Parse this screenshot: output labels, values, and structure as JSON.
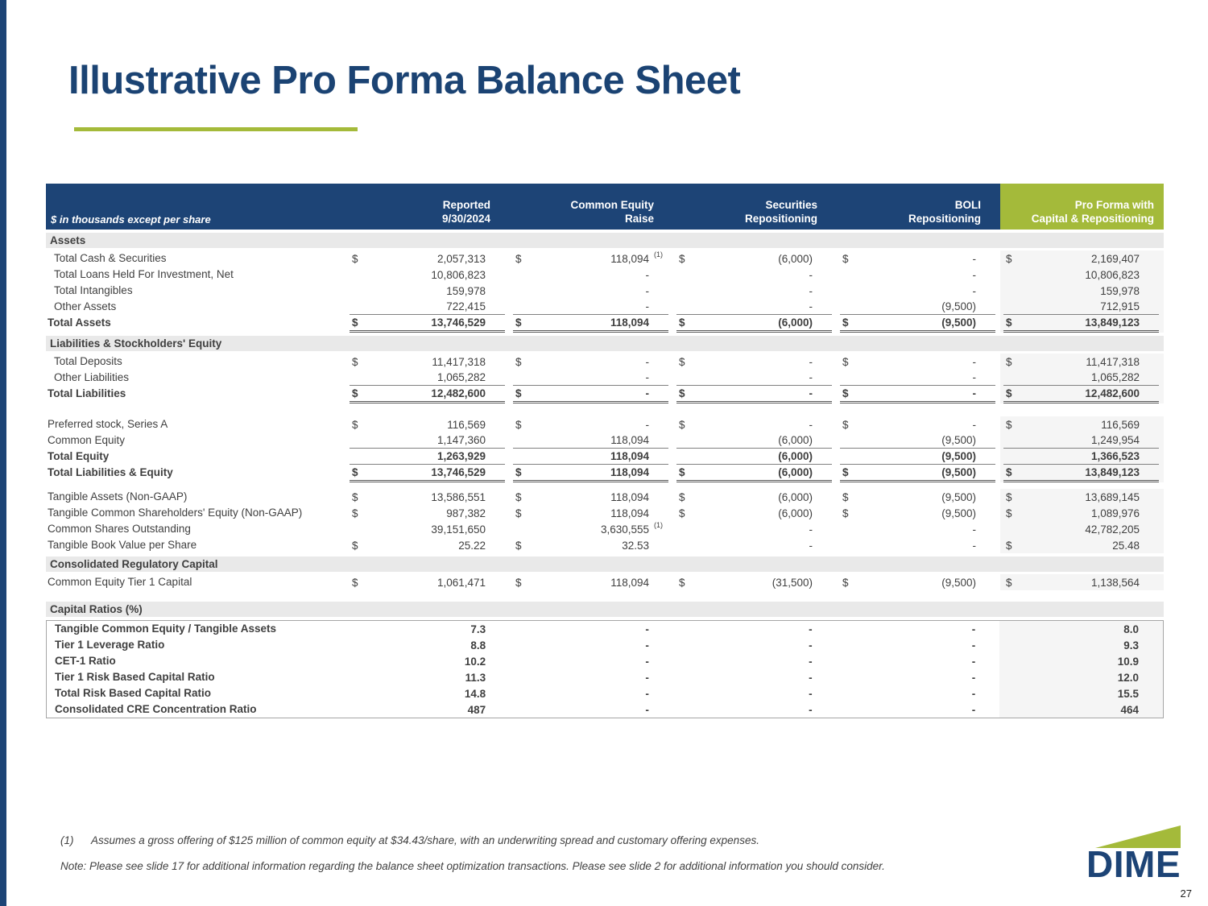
{
  "slide": {
    "title": "Illustrative Pro Forma Balance Sheet",
    "page_number": "27"
  },
  "colors": {
    "navy": "#1D4476",
    "green": "#A4BA3A",
    "section_gray": "#E9E9E9"
  },
  "table": {
    "units_label": "$ in thousands except per share",
    "columns": [
      {
        "l1": "Reported",
        "l2": "9/30/2024"
      },
      {
        "l1": "Common Equity",
        "l2": "Raise"
      },
      {
        "l1": "Securities",
        "l2": "Repositioning"
      },
      {
        "l1": "BOLI",
        "l2": "Repositioning"
      },
      {
        "l1": "Pro Forma with",
        "l2": "Capital & Repositioning"
      }
    ],
    "rows": [
      {
        "t": "section",
        "label": "Assets"
      },
      {
        "t": "data",
        "indent": true,
        "label": "Total Cash & Securities",
        "cells": [
          {
            "d": "$",
            "v": "2,057,313"
          },
          {
            "d": "$",
            "v": "118,094",
            "sup": "(1)"
          },
          {
            "d": "$",
            "v": "(6,000)"
          },
          {
            "d": "$",
            "v": "-"
          },
          {
            "d": "$",
            "v": "2,169,407"
          }
        ]
      },
      {
        "t": "data",
        "indent": true,
        "label": "Total Loans Held For Investment, Net",
        "cells": [
          {
            "v": "10,806,823"
          },
          {
            "v": "-"
          },
          {
            "v": "-"
          },
          {
            "v": "-"
          },
          {
            "v": "10,806,823"
          }
        ]
      },
      {
        "t": "data",
        "indent": true,
        "label": "Total Intangibles",
        "cells": [
          {
            "v": "159,978"
          },
          {
            "v": "-"
          },
          {
            "v": "-"
          },
          {
            "v": "-"
          },
          {
            "v": "159,978"
          }
        ]
      },
      {
        "t": "data",
        "indent": true,
        "label": "Other Assets",
        "u": 1,
        "cells": [
          {
            "v": "722,415"
          },
          {
            "v": "-"
          },
          {
            "v": "-"
          },
          {
            "v": "(9,500)"
          },
          {
            "v": "712,915"
          }
        ]
      },
      {
        "t": "data",
        "bold": true,
        "label": "Total Assets",
        "u": 2,
        "cells": [
          {
            "d": "$",
            "v": "13,746,529"
          },
          {
            "d": "$",
            "v": "118,094"
          },
          {
            "d": "$",
            "v": "(6,000)"
          },
          {
            "d": "$",
            "v": "(9,500)"
          },
          {
            "d": "$",
            "v": "13,849,123"
          }
        ]
      },
      {
        "t": "section",
        "label": "Liabilities & Stockholders' Equity"
      },
      {
        "t": "data",
        "indent": true,
        "label": "Total Deposits",
        "cells": [
          {
            "d": "$",
            "v": "11,417,318"
          },
          {
            "d": "$",
            "v": "-"
          },
          {
            "d": "$",
            "v": "-"
          },
          {
            "d": "$",
            "v": "-"
          },
          {
            "d": "$",
            "v": "11,417,318"
          }
        ]
      },
      {
        "t": "data",
        "indent": true,
        "label": "Other Liabilities",
        "u": 1,
        "cells": [
          {
            "v": "1,065,282"
          },
          {
            "v": "-"
          },
          {
            "v": "-"
          },
          {
            "v": "-"
          },
          {
            "v": "1,065,282"
          }
        ]
      },
      {
        "t": "data",
        "bold": true,
        "label": "Total Liabilities",
        "u": 2,
        "cells": [
          {
            "d": "$",
            "v": "12,482,600"
          },
          {
            "d": "$",
            "v": "-"
          },
          {
            "d": "$",
            "v": "-"
          },
          {
            "d": "$",
            "v": "-"
          },
          {
            "d": "$",
            "v": "12,482,600"
          }
        ]
      },
      {
        "t": "spacer",
        "h": 16
      },
      {
        "t": "data",
        "label": "Preferred stock, Series A",
        "cells": [
          {
            "d": "$",
            "v": "116,569"
          },
          {
            "d": "$",
            "v": "-"
          },
          {
            "d": "$",
            "v": "-"
          },
          {
            "d": "$",
            "v": "-"
          },
          {
            "d": "$",
            "v": "116,569"
          }
        ]
      },
      {
        "t": "data",
        "label": "Common Equity",
        "u": 1,
        "cells": [
          {
            "v": "1,147,360"
          },
          {
            "v": "118,094"
          },
          {
            "v": "(6,000)"
          },
          {
            "v": "(9,500)"
          },
          {
            "v": "1,249,954"
          }
        ]
      },
      {
        "t": "data",
        "bold": true,
        "label": "Total Equity",
        "u": 1,
        "cells": [
          {
            "v": "1,263,929"
          },
          {
            "v": "118,094"
          },
          {
            "v": "(6,000)"
          },
          {
            "v": "(9,500)"
          },
          {
            "v": "1,366,523"
          }
        ]
      },
      {
        "t": "data",
        "bold": true,
        "label": "Total Liabilities & Equity",
        "u": 2,
        "cells": [
          {
            "d": "$",
            "v": "13,746,529"
          },
          {
            "d": "$",
            "v": "118,094"
          },
          {
            "d": "$",
            "v": "(6,000)"
          },
          {
            "d": "$",
            "v": "(9,500)"
          },
          {
            "d": "$",
            "v": "13,849,123"
          }
        ]
      },
      {
        "t": "spacer",
        "h": 8
      },
      {
        "t": "data",
        "label": "Tangible Assets (Non-GAAP)",
        "cells": [
          {
            "d": "$",
            "v": "13,586,551"
          },
          {
            "d": "$",
            "v": "118,094"
          },
          {
            "d": "$",
            "v": "(6,000)"
          },
          {
            "d": "$",
            "v": "(9,500)"
          },
          {
            "d": "$",
            "v": "13,689,145"
          }
        ]
      },
      {
        "t": "data",
        "label": "Tangible Common Shareholders' Equity (Non-GAAP)",
        "cells": [
          {
            "d": "$",
            "v": "987,382"
          },
          {
            "d": "$",
            "v": "118,094"
          },
          {
            "d": "$",
            "v": "(6,000)"
          },
          {
            "d": "$",
            "v": "(9,500)"
          },
          {
            "d": "$",
            "v": "1,089,976"
          }
        ]
      },
      {
        "t": "data",
        "label": "Common Shares Outstanding",
        "cells": [
          {
            "v": "39,151,650"
          },
          {
            "v": "3,630,555",
            "sup": "(1)"
          },
          {
            "v": "-"
          },
          {
            "v": "-"
          },
          {
            "v": "42,782,205"
          }
        ]
      },
      {
        "t": "data",
        "label": "Tangible Book Value per Share",
        "cells": [
          {
            "d": "$",
            "v": "25.22"
          },
          {
            "d": "$",
            "v": "32.53"
          },
          {
            "v": "-"
          },
          {
            "v": "-"
          },
          {
            "d": "$",
            "v": "25.48"
          }
        ]
      },
      {
        "t": "section",
        "label": "Consolidated Regulatory Capital"
      },
      {
        "t": "data",
        "label": "Common Equity Tier 1 Capital",
        "cells": [
          {
            "d": "$",
            "v": "1,061,471"
          },
          {
            "d": "$",
            "v": "118,094"
          },
          {
            "d": "$",
            "v": "(31,500)"
          },
          {
            "d": "$",
            "v": "(9,500)"
          },
          {
            "d": "$",
            "v": "1,138,564"
          }
        ]
      },
      {
        "t": "spacer",
        "h": 10
      },
      {
        "t": "section",
        "label": "Capital Ratios (%)"
      },
      {
        "t": "ratio",
        "indent": true,
        "label": "Tangible Common Equity / Tangible Assets",
        "cells": [
          {
            "v": "7.3"
          },
          {
            "v": "-"
          },
          {
            "v": "-"
          },
          {
            "v": "-"
          },
          {
            "v": "8.0"
          }
        ]
      },
      {
        "t": "ratio",
        "indent": true,
        "label": "Tier 1 Leverage Ratio",
        "cells": [
          {
            "v": "8.8"
          },
          {
            "v": "-"
          },
          {
            "v": "-"
          },
          {
            "v": "-"
          },
          {
            "v": "9.3"
          }
        ]
      },
      {
        "t": "ratio",
        "indent": true,
        "label": "CET-1 Ratio",
        "cells": [
          {
            "v": "10.2"
          },
          {
            "v": "-"
          },
          {
            "v": "-"
          },
          {
            "v": "-"
          },
          {
            "v": "10.9"
          }
        ]
      },
      {
        "t": "ratio",
        "indent": true,
        "label": "Tier 1 Risk Based Capital Ratio",
        "cells": [
          {
            "v": "11.3"
          },
          {
            "v": "-"
          },
          {
            "v": "-"
          },
          {
            "v": "-"
          },
          {
            "v": "12.0"
          }
        ]
      },
      {
        "t": "ratio",
        "indent": true,
        "label": "Total Risk Based Capital Ratio",
        "cells": [
          {
            "v": "14.8"
          },
          {
            "v": "-"
          },
          {
            "v": "-"
          },
          {
            "v": "-"
          },
          {
            "v": "15.5"
          }
        ]
      },
      {
        "t": "ratio",
        "indent": true,
        "label": "Consolidated CRE Concentration Ratio",
        "cells": [
          {
            "v": "487"
          },
          {
            "v": "-"
          },
          {
            "v": "-"
          },
          {
            "v": "-"
          },
          {
            "v": "464"
          }
        ]
      }
    ]
  },
  "footnotes": {
    "fn1_marker": "(1)",
    "fn1_text": "Assumes a gross offering of $125 million of common equity at $34.43/share, with an underwriting spread and customary offering expenses.",
    "note": "Note: Please see slide 17 for additional information regarding the balance sheet optimization transactions. Please see slide 2 for additional information you should consider."
  },
  "logo": {
    "text": "DIME"
  }
}
